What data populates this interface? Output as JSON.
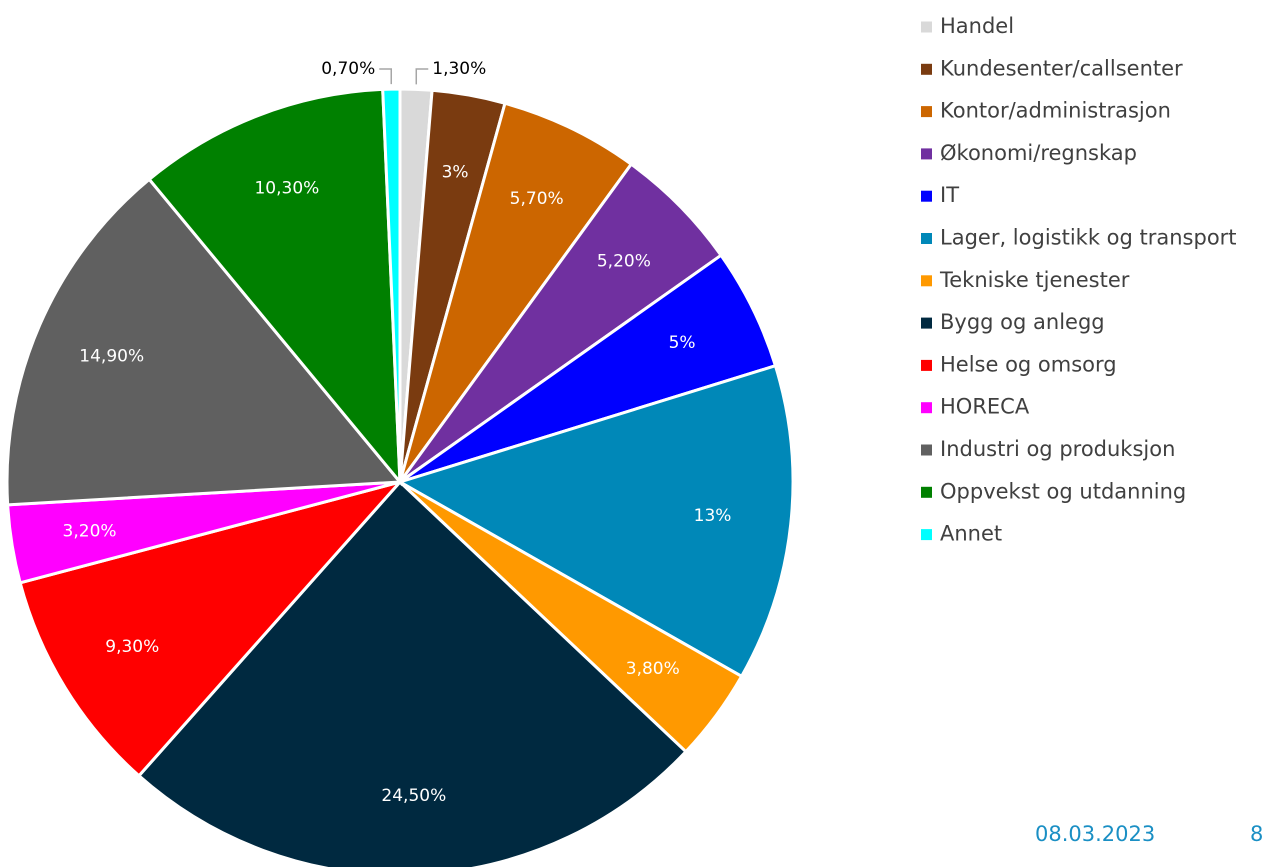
{
  "chart_data": {
    "type": "pie",
    "categories": [
      "Handel",
      "Kundesenter/callsenter",
      "Kontor/administrasjon",
      "Økonomi/regnskap",
      "IT",
      "Lager, logistikk og transport",
      "Tekniske tjenester",
      "Bygg og anlegg",
      "Helse og omsorg",
      "HORECA",
      "Industri og produksjon",
      "Oppvekst og utdanning",
      "Annet"
    ],
    "values": [
      1.3,
      3,
      5.7,
      5.2,
      5,
      13,
      3.8,
      24.5,
      9.3,
      3.2,
      14.9,
      10.3,
      0.7
    ],
    "value_labels": [
      "1,30%",
      "3%",
      "5,70%",
      "5,20%",
      "5%",
      "13%",
      "3,80%",
      "24,50%",
      "9,30%",
      "3,20%",
      "14,90%",
      "10,30%",
      "0,70%"
    ],
    "colors": [
      "#d9d9d9",
      "#7a3b10",
      "#cc6600",
      "#7030a0",
      "#0000ff",
      "#0088b8",
      "#ff9900",
      "#002940",
      "#ff0000",
      "#ff00ff",
      "#606060",
      "#008000",
      "#00ffff"
    ],
    "legend": "right"
  },
  "footer": {
    "date": "08.03.2023",
    "page": "8"
  }
}
